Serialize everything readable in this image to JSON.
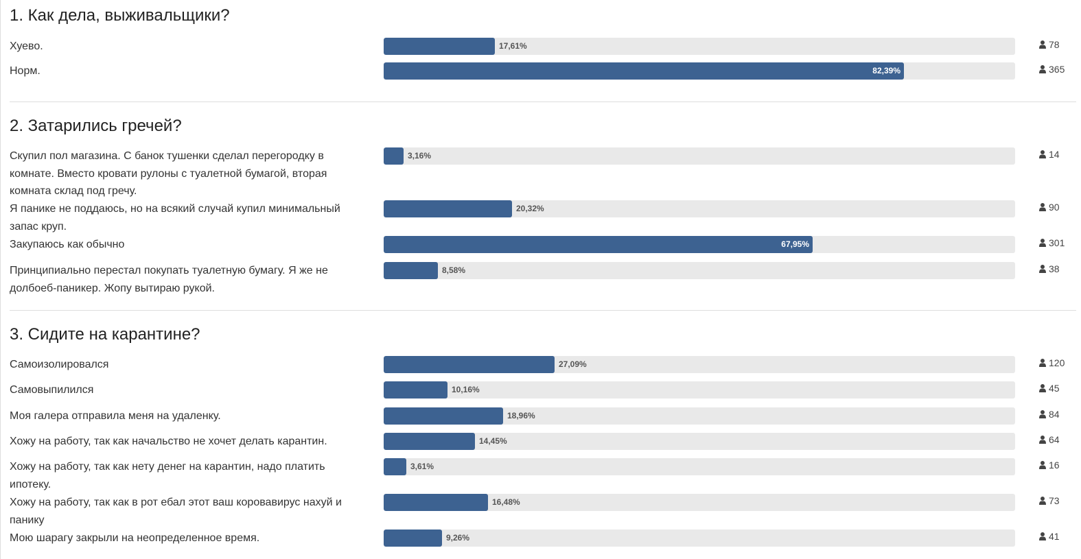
{
  "colors": {
    "bar_fill": "#3d6291",
    "bar_track": "#e9e9e9",
    "divider": "#dddddd"
  },
  "questions": [
    {
      "title": "1. Как дела, выживальщики?",
      "answers": [
        {
          "label": "Хуево.",
          "percent": 17.61,
          "percent_text": "17,61%",
          "votes": "78"
        },
        {
          "label": "Норм.",
          "percent": 82.39,
          "percent_text": "82,39%",
          "votes": "365"
        }
      ]
    },
    {
      "title": "2. Затарились гречей?",
      "answers": [
        {
          "label": "Скупил пол магазина. С банок тушенки сделал перегородку в комнате. Вместо кровати рулоны с туалетной бумагой, вторая комната склад под гречу.",
          "percent": 3.16,
          "percent_text": "3,16%",
          "votes": "14"
        },
        {
          "label": "Я панике не поддаюсь, но на всякий случай купил минимальный запас круп.",
          "percent": 20.32,
          "percent_text": "20,32%",
          "votes": "90"
        },
        {
          "label": "Закупаюсь как обычно",
          "percent": 67.95,
          "percent_text": "67,95%",
          "votes": "301"
        },
        {
          "label": "Принципиально перестал покупать туалетную бумагу. Я же не долбоеб-паникер. Жопу вытираю рукой.",
          "percent": 8.58,
          "percent_text": "8,58%",
          "votes": "38"
        }
      ]
    },
    {
      "title": "3. Сидите на карантине?",
      "answers": [
        {
          "label": "Самоизолировался",
          "percent": 27.09,
          "percent_text": "27,09%",
          "votes": "120"
        },
        {
          "label": "Самовыпилился",
          "percent": 10.16,
          "percent_text": "10,16%",
          "votes": "45"
        },
        {
          "label": "Моя галера отправила меня на удаленку.",
          "percent": 18.96,
          "percent_text": "18,96%",
          "votes": "84"
        },
        {
          "label": "Хожу на работу, так как начальство не хочет делать карантин.",
          "percent": 14.45,
          "percent_text": "14,45%",
          "votes": "64"
        },
        {
          "label": "Хожу на работу, так как нету денег на карантин, надо платить ипотеку.",
          "percent": 3.61,
          "percent_text": "3,61%",
          "votes": "16"
        },
        {
          "label": "Хожу на работу, так как в рот ебал этот ваш коровавирус нахуй и панику",
          "percent": 16.48,
          "percent_text": "16,48%",
          "votes": "73"
        },
        {
          "label": "Мою шарагу закрыли на неопределенное время.",
          "percent": 9.26,
          "percent_text": "9,26%",
          "votes": "41"
        }
      ]
    }
  ]
}
